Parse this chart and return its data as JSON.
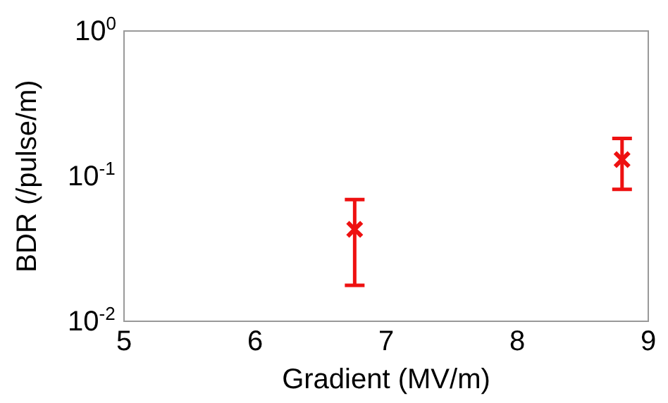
{
  "chart_data": {
    "type": "scatter",
    "xlabel": "Gradient (MV/m)",
    "ylabel": "BDR (/pulse/m)",
    "x": [
      6.76,
      8.8
    ],
    "values": [
      0.043,
      0.13
    ],
    "color": "#ee1111",
    "errors": [
      [
        0.0177,
        0.069
      ],
      [
        0.081,
        0.182
      ]
    ],
    "marker": "cross",
    "log": "y",
    "grid": false,
    "legend": false,
    "xlim": [
      5,
      9
    ],
    "xticks": [
      5,
      6,
      7,
      8,
      9
    ],
    "ylim": [
      0.01,
      1
    ],
    "yticks": [
      {
        "value": 0.01,
        "label": "10$^{-2}$"
      },
      {
        "value": 0.1,
        "label": "10$^{-1}$"
      },
      {
        "value": 1,
        "label": "10$^{0}$"
      }
    ]
  }
}
